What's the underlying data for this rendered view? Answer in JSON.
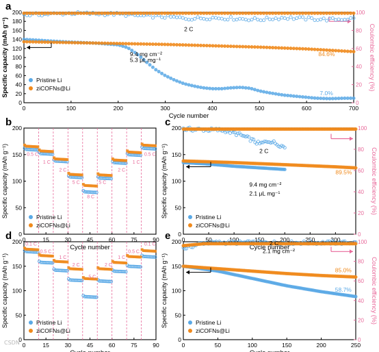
{
  "colors": {
    "blue": "#5aa9e6",
    "orange": "#f08a1c",
    "pink": "#e8699a",
    "axis": "#000000",
    "text": "#333333"
  },
  "watermark": {
    "label": "CSDN",
    "show": true
  },
  "chart_data": [
    {
      "id": "a",
      "panel_letter": "a",
      "type": "scatter",
      "xlabel": "Cycle number",
      "ylabel": "Specific capacity (mAh g⁻¹)",
      "ylabel_right": "Coulombic efficiency (%)",
      "xlim": [
        0,
        700
      ],
      "ylim": [
        0,
        200
      ],
      "ylim_right": [
        0,
        100
      ],
      "xticks": [
        0,
        100,
        200,
        300,
        400,
        500,
        600,
        700
      ],
      "yticks": [
        0,
        20,
        40,
        60,
        80,
        100,
        120,
        140,
        160,
        180,
        200
      ],
      "yticks_right": [
        0,
        20,
        40,
        60,
        80,
        100
      ],
      "legend": {
        "position": "bottom-left",
        "entries": [
          "Pristine Li",
          "ziCOFNs@Li"
        ]
      },
      "annotations": [
        {
          "text": "2 C",
          "x": 340,
          "y": 158
        },
        {
          "text": "9.4 mg cm⁻²",
          "x": 225,
          "y": 103
        },
        {
          "text": "5.3 μL mg⁻¹",
          "x": 225,
          "y": 90
        },
        {
          "text": "84.6%",
          "x": 625,
          "y": 103,
          "color": "orange"
        },
        {
          "text": "7.0%",
          "x": 628,
          "y": 17,
          "color": "blue"
        }
      ],
      "series": [
        {
          "name": "Pristine Li",
          "color": "blue",
          "axis": "left",
          "points": [
            [
              0,
              140
            ],
            [
              50,
              137
            ],
            [
              100,
              134
            ],
            [
              150,
              132
            ],
            [
              200,
              128
            ],
            [
              220,
              122
            ],
            [
              240,
              108
            ],
            [
              260,
              90
            ],
            [
              280,
              73
            ],
            [
              300,
              60
            ],
            [
              320,
              50
            ],
            [
              340,
              42
            ],
            [
              360,
              37
            ],
            [
              380,
              33
            ],
            [
              400,
              31
            ],
            [
              420,
              31
            ],
            [
              440,
              33
            ],
            [
              460,
              34
            ],
            [
              480,
              32
            ],
            [
              500,
              26
            ],
            [
              520,
              22
            ],
            [
              550,
              17
            ],
            [
              580,
              14
            ],
            [
              600,
              12
            ],
            [
              620,
              10
            ],
            [
              650,
              9
            ],
            [
              680,
              10
            ],
            [
              700,
              10
            ]
          ]
        },
        {
          "name": "ziCOFNs@Li",
          "color": "orange",
          "axis": "left",
          "points": [
            [
              0,
              135
            ],
            [
              100,
              133
            ],
            [
              200,
              131
            ],
            [
              300,
              129
            ],
            [
              400,
              126
            ],
            [
              500,
              123
            ],
            [
              600,
              119
            ],
            [
              650,
              116
            ],
            [
              700,
              113
            ]
          ]
        },
        {
          "name": "Pristine Li CE",
          "color": "blue",
          "axis": "right",
          "points": [
            [
              0,
              97
            ],
            [
              100,
              99
            ],
            [
              200,
              98
            ],
            [
              250,
              96
            ],
            [
              300,
              95
            ],
            [
              350,
              93
            ],
            [
              400,
              94
            ],
            [
              450,
              93
            ],
            [
              500,
              92
            ],
            [
              550,
              94
            ],
            [
              600,
              93
            ],
            [
              650,
              92
            ],
            [
              700,
              93
            ]
          ]
        },
        {
          "name": "ziCOFNs@Li CE",
          "color": "orange",
          "axis": "right",
          "points": [
            [
              0,
              99
            ],
            [
              700,
              99
            ]
          ]
        }
      ]
    },
    {
      "id": "b",
      "panel_letter": "b",
      "type": "scatter",
      "xlabel": "Cycle number",
      "ylabel": "Specific capacity (mAh g⁻¹)",
      "xlim": [
        0,
        90
      ],
      "ylim": [
        0,
        200
      ],
      "xticks": [
        0,
        15,
        30,
        45,
        60,
        75,
        90
      ],
      "yticks": [
        0,
        50,
        100,
        150,
        200
      ],
      "vlines": [
        10,
        20,
        30,
        40,
        50,
        60,
        70,
        80
      ],
      "legend": {
        "position": "bottom-left",
        "entries": [
          "Pristine Li",
          "ziCOFNs@Li"
        ]
      },
      "annotations": [
        {
          "text": "0.5 C",
          "x": 2,
          "y": 148
        },
        {
          "text": "1 C",
          "x": 13,
          "y": 133
        },
        {
          "text": "2 C",
          "x": 24,
          "y": 118
        },
        {
          "text": "5 C",
          "x": 33,
          "y": 95
        },
        {
          "text": "8 C",
          "x": 43,
          "y": 68
        },
        {
          "text": "5 C",
          "x": 51,
          "y": 95
        },
        {
          "text": "2 C",
          "x": 64,
          "y": 118
        },
        {
          "text": "1 C",
          "x": 74,
          "y": 133
        },
        {
          "text": "0.5 C",
          "x": 82,
          "y": 148
        }
      ],
      "series": [
        {
          "name": "Pristine Li",
          "color": "blue",
          "levels": [
            160,
            152,
            138,
            108,
            80,
            106,
            135,
            150,
            162
          ]
        },
        {
          "name": "ziCOFNs@Li",
          "color": "orange",
          "levels": [
            166,
            157,
            142,
            113,
            92,
            112,
            140,
            155,
            168
          ]
        }
      ]
    },
    {
      "id": "c",
      "panel_letter": "c",
      "type": "scatter",
      "xlabel": "Cycle number",
      "ylabel": "Specific capacity (mAh g⁻¹)",
      "ylabel_right": "Coulombic efficiency (%)",
      "xlim": [
        0,
        340
      ],
      "ylim": [
        0,
        200
      ],
      "ylim_right": [
        0,
        100
      ],
      "xticks": [
        0,
        50,
        100,
        150,
        200,
        250,
        300
      ],
      "yticks": [
        0,
        50,
        100,
        150,
        200
      ],
      "yticks_right": [
        0,
        20,
        40,
        60,
        80,
        100
      ],
      "legend": {
        "position": "bottom-left",
        "entries": [
          "Pristine Li",
          "ziCOFNs@Li"
        ]
      },
      "annotations": [
        {
          "text": "2 C",
          "x": 150,
          "y": 153
        },
        {
          "text": "9.4 mg cm⁻²",
          "x": 130,
          "y": 90
        },
        {
          "text": "2.1 μL mg⁻¹",
          "x": 130,
          "y": 73
        },
        {
          "text": "89.5%",
          "x": 300,
          "y": 113,
          "color": "orange"
        }
      ],
      "series": [
        {
          "name": "Pristine Li",
          "color": "blue",
          "axis": "left",
          "points": [
            [
              0,
              135
            ],
            [
              50,
              132
            ],
            [
              100,
              128
            ],
            [
              150,
              125
            ],
            [
              200,
              122
            ]
          ]
        },
        {
          "name": "ziCOFNs@Li",
          "color": "orange",
          "axis": "left",
          "points": [
            [
              0,
              138
            ],
            [
              100,
              135
            ],
            [
              200,
              131
            ],
            [
              300,
              127
            ],
            [
              340,
              125
            ]
          ]
        },
        {
          "name": "Pristine Li CE",
          "color": "blue",
          "axis": "right",
          "points": [
            [
              0,
              99
            ],
            [
              80,
              98
            ],
            [
              110,
              94
            ],
            [
              130,
              90
            ],
            [
              150,
              85
            ],
            [
              170,
              88
            ],
            [
              200,
              82
            ]
          ]
        },
        {
          "name": "ziCOFNs@Li CE",
          "color": "orange",
          "axis": "right",
          "points": [
            [
              0,
              99
            ],
            [
              340,
              99
            ]
          ]
        }
      ]
    },
    {
      "id": "d",
      "panel_letter": "d",
      "type": "scatter",
      "xlabel": "Cycle number",
      "ylabel": "Specific capacity (mAh g⁻¹)",
      "xlim": [
        0,
        90
      ],
      "ylim": [
        0,
        200
      ],
      "xticks": [
        0,
        15,
        30,
        45,
        60,
        75,
        90
      ],
      "yticks": [
        0,
        50,
        100,
        150,
        200
      ],
      "vlines": [
        10,
        20,
        30,
        40,
        50,
        60,
        70,
        80
      ],
      "legend": {
        "position": "bottom-left",
        "entries": [
          "Pristine Li",
          "ziCOFNs@Li"
        ]
      },
      "annotations": [
        {
          "text": "0.1 C",
          "x": 1,
          "y": 192
        },
        {
          "text": "0.5 C",
          "x": 11,
          "y": 177
        },
        {
          "text": "1 C",
          "x": 24,
          "y": 165
        },
        {
          "text": "2 C",
          "x": 33,
          "y": 150
        },
        {
          "text": "5 C",
          "x": 44,
          "y": 125
        },
        {
          "text": "2 C",
          "x": 55,
          "y": 150
        },
        {
          "text": "1 C",
          "x": 64,
          "y": 165
        },
        {
          "text": "0.5 C",
          "x": 71,
          "y": 177
        },
        {
          "text": "0.1 C",
          "x": 82,
          "y": 192
        }
      ],
      "series": [
        {
          "name": "Pristine Li",
          "color": "blue",
          "levels": [
            180,
            158,
            142,
            122,
            88,
            120,
            140,
            150,
            170
          ]
        },
        {
          "name": "ziCOFNs@Li",
          "color": "orange",
          "levels": [
            185,
            172,
            160,
            145,
            125,
            145,
            158,
            170,
            182
          ]
        }
      ]
    },
    {
      "id": "e",
      "panel_letter": "e",
      "type": "scatter",
      "xlabel": "Cycle number",
      "ylabel": "Specific capacity (mAh g⁻¹)",
      "ylabel_right": "Coulombic efficiency (%)",
      "xlim": [
        0,
        250
      ],
      "ylim": [
        0,
        200
      ],
      "ylim_right": [
        0,
        100
      ],
      "xticks": [
        0,
        50,
        100,
        150,
        200,
        250
      ],
      "yticks": [
        0,
        50,
        100,
        150,
        200
      ],
      "yticks_right": [
        0,
        20,
        40,
        60,
        80,
        100
      ],
      "legend": {
        "position": "bottom-left",
        "entries": [
          "Pristine Li",
          "ziCOFNs@Li"
        ]
      },
      "annotations": [
        {
          "text": "2 C",
          "x": 125,
          "y": 193
        },
        {
          "text": "2.1 mg cm⁻²",
          "x": 115,
          "y": 177
        },
        {
          "text": "85.0%",
          "x": 220,
          "y": 138,
          "color": "orange"
        },
        {
          "text": "58.7%",
          "x": 220,
          "y": 98,
          "color": "blue"
        }
      ],
      "series": [
        {
          "name": "Pristine Li",
          "color": "blue",
          "axis": "left",
          "points": [
            [
              0,
              150
            ],
            [
              50,
              140
            ],
            [
              100,
              125
            ],
            [
              150,
              110
            ],
            [
              200,
              98
            ],
            [
              250,
              88
            ]
          ]
        },
        {
          "name": "ziCOFNs@Li",
          "color": "orange",
          "axis": "left",
          "points": [
            [
              0,
              150
            ],
            [
              50,
              145
            ],
            [
              100,
              140
            ],
            [
              150,
              135
            ],
            [
              200,
              131
            ],
            [
              250,
              128
            ]
          ]
        },
        {
          "name": "Pristine Li CE",
          "color": "blue",
          "axis": "right",
          "points": [
            [
              0,
              93
            ],
            [
              30,
              99
            ],
            [
              250,
              99
            ]
          ]
        },
        {
          "name": "ziCOFNs@Li CE",
          "color": "orange",
          "axis": "right",
          "points": [
            [
              0,
              96
            ],
            [
              30,
              98
            ],
            [
              250,
              98
            ]
          ]
        }
      ]
    }
  ]
}
